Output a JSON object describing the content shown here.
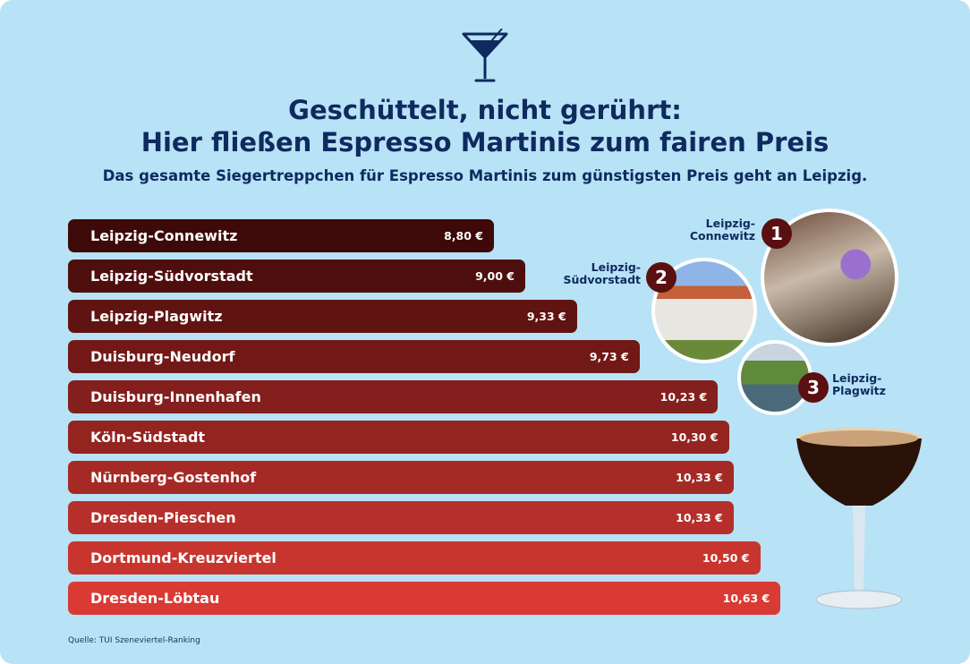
{
  "header": {
    "icon": "cocktail-glass-icon",
    "title_line1": "Geschüttelt, nicht gerührt:",
    "title_line2": "Hier fließen Espresso Martinis zum fairen Preis",
    "subtitle": "Das gesamte Siegertreppchen für Espresso Martinis zum günstigsten Preis geht an Leipzig."
  },
  "chart_data": {
    "type": "bar",
    "orientation": "horizontal",
    "categories": [
      "Leipzig-Connewitz",
      "Leipzig-Südvorstadt",
      "Leipzig-Plagwitz",
      "Duisburg-Neudorf",
      "Duisburg-Innenhafen",
      "Köln-Südstadt",
      "Nürnberg-Gostenhof",
      "Dresden-Pieschen",
      "Dortmund-Kreuzviertel",
      "Dresden-Löbtau"
    ],
    "values": [
      8.8,
      9.0,
      9.33,
      9.73,
      10.23,
      10.3,
      10.33,
      10.33,
      10.5,
      10.63
    ],
    "value_labels": [
      "8,80 €",
      "9,00 €",
      "9,33 €",
      "9,73 €",
      "10,23 €",
      "10,30 €",
      "10,33 €",
      "10,33 €",
      "10,50 €",
      "10,63 €"
    ],
    "unit": "€",
    "colors": {
      "start": "#3e0909",
      "end": "#d93a33"
    },
    "grid": false
  },
  "podium": [
    {
      "rank": "1",
      "label_line1": "Leipzig-",
      "label_line2": "Connewitz"
    },
    {
      "rank": "2",
      "label_line1": "Leipzig-",
      "label_line2": "Südvorstadt"
    },
    {
      "rank": "3",
      "label_line1": "Leipzig-",
      "label_line2": "Plagwitz"
    }
  ],
  "source": "Quelle: TUI Szeneviertel-Ranking",
  "colors": {
    "background": "#b8e2f6",
    "text": "#0e2a5e",
    "badge": "#5a0f10"
  }
}
